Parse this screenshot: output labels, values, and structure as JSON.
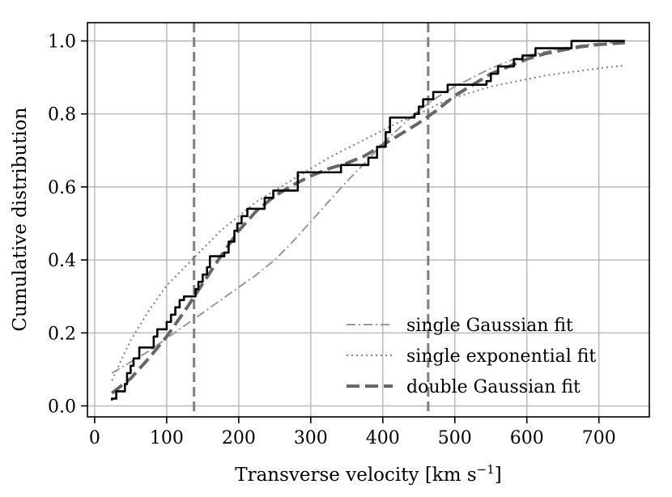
{
  "chart_data": {
    "type": "line",
    "xlabel": "Transverse velocity [km s",
    "xlabel_superscript": "−1",
    "xlabel_suffix": "]",
    "ylabel": "Cumulative distribution",
    "xlim": [
      -10,
      770
    ],
    "ylim": [
      -0.03,
      1.05
    ],
    "x_ticks": [
      0,
      100,
      200,
      300,
      400,
      500,
      600,
      700
    ],
    "y_ticks": [
      0.0,
      0.2,
      0.4,
      0.6,
      0.8,
      1.0
    ],
    "x_tick_labels": [
      "0",
      "100",
      "200",
      "300",
      "400",
      "500",
      "600",
      "700"
    ],
    "y_tick_labels": [
      "0.0",
      "0.2",
      "0.4",
      "0.6",
      "0.8",
      "1.0"
    ],
    "grid": true,
    "legend_position": "lower-right",
    "vertical_lines": [
      {
        "x": 138,
        "style": "dashed",
        "color": "#7f7f7f"
      },
      {
        "x": 463,
        "style": "dashed",
        "color": "#7f7f7f"
      }
    ],
    "series": [
      {
        "name": "",
        "style": "step",
        "color": "#000000",
        "x": [
          24,
          30,
          42,
          45,
          50,
          54,
          62,
          72,
          82,
          87,
          100,
          106,
          112,
          118,
          124,
          134,
          140,
          144,
          150,
          156,
          160,
          170,
          180,
          186,
          194,
          198,
          204,
          212,
          222,
          236,
          248,
          262,
          282,
          330,
          342,
          354,
          368,
          380,
          392,
          404,
          410,
          428,
          444,
          450,
          456,
          462,
          470,
          482,
          490,
          512,
          534,
          544,
          548,
          550,
          560,
          572,
          582,
          594,
          602,
          612,
          626,
          662,
          736
        ],
        "y": [
          0.02,
          0.04,
          0.06,
          0.09,
          0.11,
          0.13,
          0.16,
          0.16,
          0.19,
          0.21,
          0.23,
          0.25,
          0.27,
          0.29,
          0.3,
          0.3,
          0.32,
          0.34,
          0.36,
          0.38,
          0.41,
          0.41,
          0.42,
          0.45,
          0.48,
          0.5,
          0.52,
          0.54,
          0.54,
          0.57,
          0.59,
          0.59,
          0.64,
          0.64,
          0.66,
          0.66,
          0.66,
          0.68,
          0.71,
          0.75,
          0.79,
          0.79,
          0.8,
          0.82,
          0.84,
          0.84,
          0.86,
          0.86,
          0.88,
          0.88,
          0.88,
          0.89,
          0.89,
          0.91,
          0.93,
          0.93,
          0.95,
          0.96,
          0.96,
          0.98,
          0.98,
          1.0,
          1.0
        ]
      },
      {
        "name": "single Gaussian fit",
        "style": "dashdot",
        "color": "#999999",
        "x": [
          24,
          50,
          75,
          100,
          125,
          150,
          175,
          200,
          225,
          250,
          275,
          300,
          325,
          350,
          375,
          400,
          425,
          450,
          475,
          500,
          525,
          550,
          575,
          600,
          625,
          650,
          675,
          700,
          736
        ],
        "y": [
          0.09,
          0.12,
          0.15,
          0.185,
          0.22,
          0.255,
          0.29,
          0.325,
          0.36,
          0.4,
          0.45,
          0.505,
          0.56,
          0.615,
          0.665,
          0.72,
          0.765,
          0.81,
          0.845,
          0.875,
          0.9,
          0.925,
          0.945,
          0.96,
          0.97,
          0.98,
          0.988,
          0.993,
          0.997
        ]
      },
      {
        "name": "single exponential fit",
        "style": "dotted",
        "color": "#888888",
        "x": [
          24,
          50,
          75,
          100,
          125,
          150,
          175,
          200,
          225,
          250,
          275,
          300,
          325,
          350,
          375,
          400,
          425,
          450,
          475,
          500,
          525,
          550,
          575,
          600,
          625,
          650,
          675,
          700,
          736
        ],
        "y": [
          0.07,
          0.18,
          0.26,
          0.33,
          0.38,
          0.43,
          0.48,
          0.52,
          0.56,
          0.59,
          0.62,
          0.65,
          0.68,
          0.705,
          0.73,
          0.755,
          0.78,
          0.8,
          0.825,
          0.845,
          0.86,
          0.875,
          0.885,
          0.895,
          0.905,
          0.912,
          0.918,
          0.925,
          0.933
        ]
      },
      {
        "name": "double Gaussian fit",
        "style": "dashed-thick",
        "color": "#666666",
        "x": [
          24,
          50,
          75,
          100,
          125,
          150,
          175,
          200,
          225,
          250,
          275,
          300,
          325,
          350,
          375,
          400,
          425,
          450,
          475,
          500,
          525,
          550,
          575,
          600,
          625,
          650,
          675,
          700,
          736
        ],
        "y": [
          0.035,
          0.075,
          0.13,
          0.19,
          0.26,
          0.335,
          0.41,
          0.48,
          0.535,
          0.575,
          0.605,
          0.63,
          0.65,
          0.665,
          0.685,
          0.715,
          0.745,
          0.775,
          0.81,
          0.85,
          0.88,
          0.91,
          0.93,
          0.95,
          0.965,
          0.975,
          0.984,
          0.99,
          0.995
        ]
      }
    ]
  }
}
